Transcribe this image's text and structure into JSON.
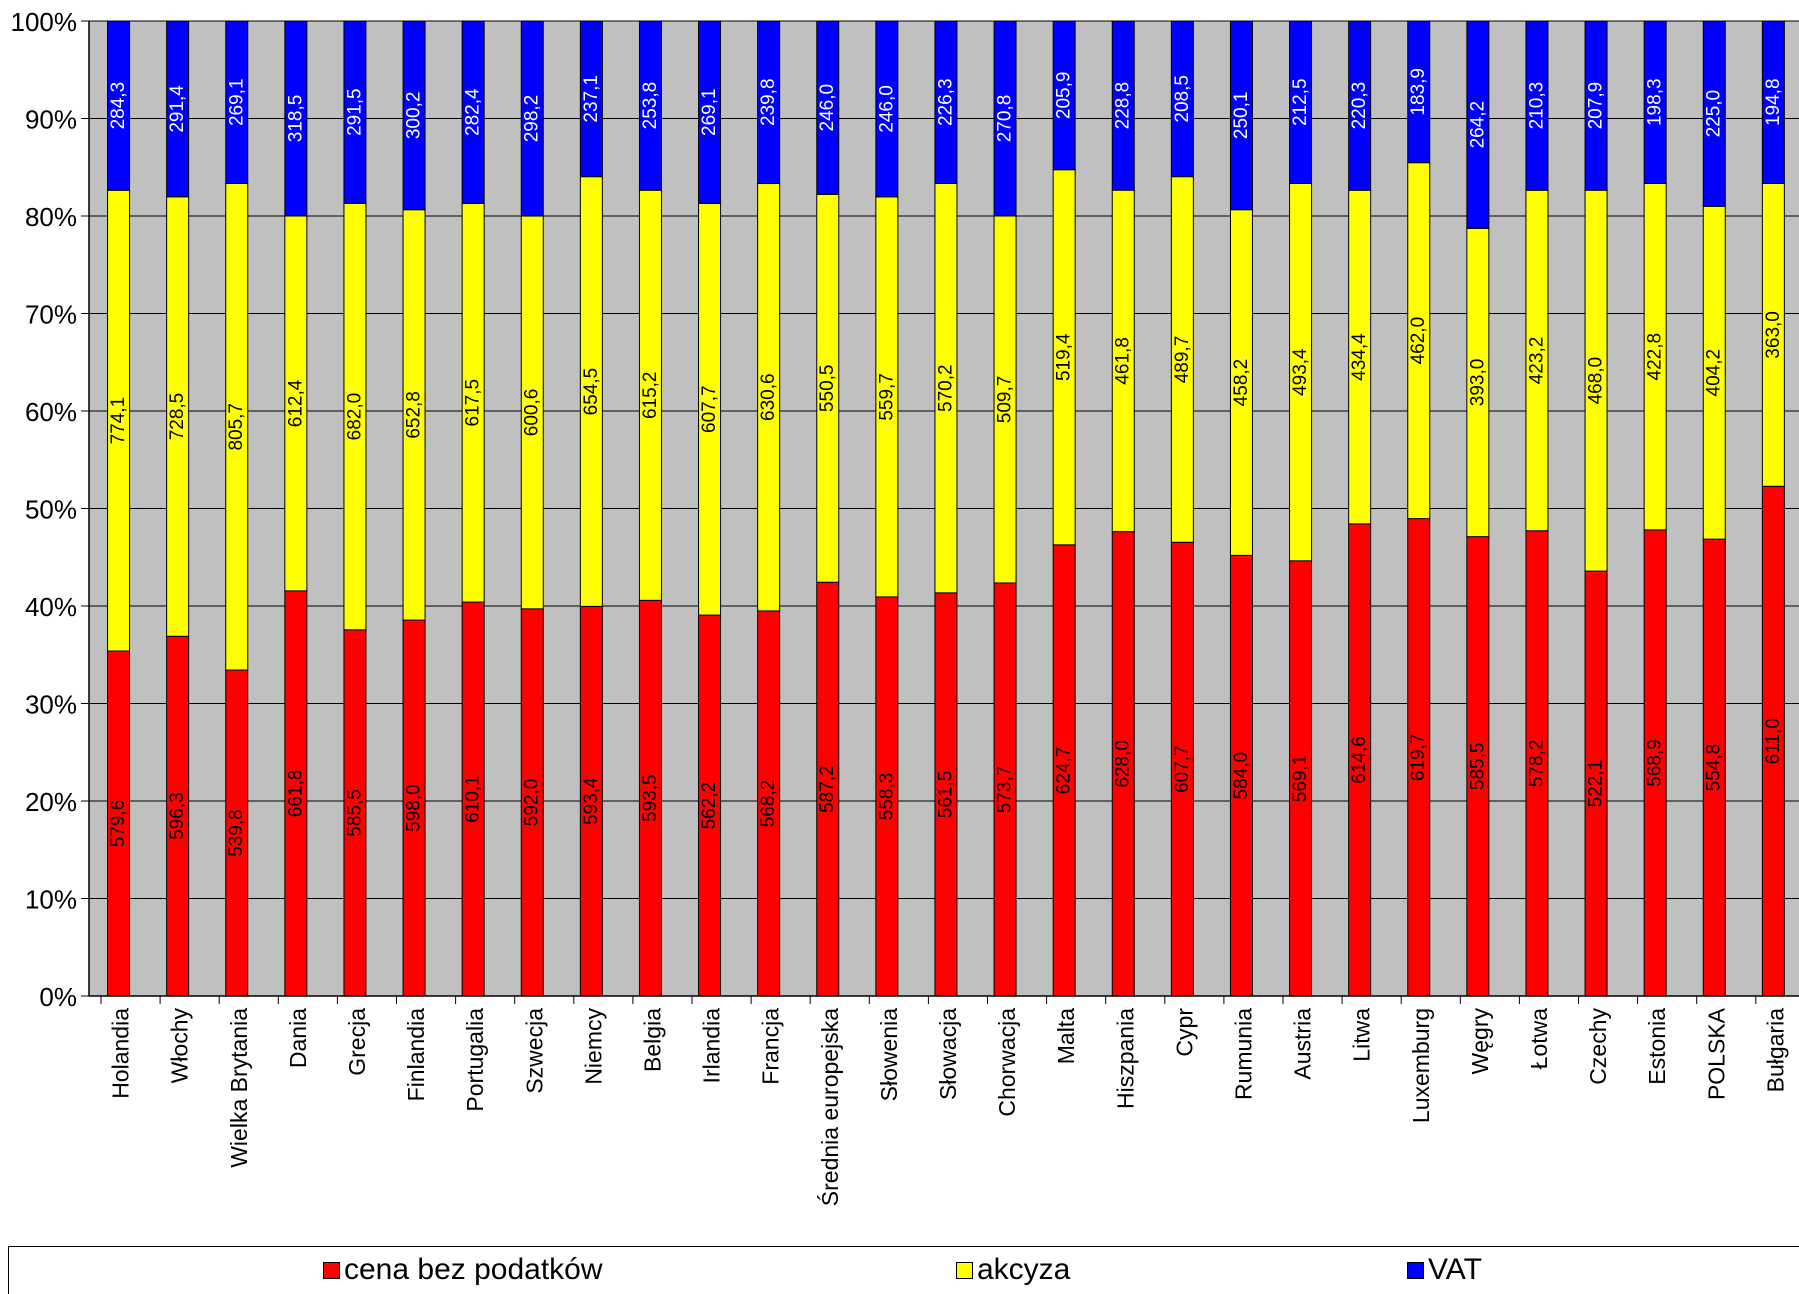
{
  "chart_data": {
    "type": "bar",
    "stacked": "percent",
    "categories": [
      "Holandia",
      "Włochy",
      "Wielka Brytania",
      "Dania",
      "Grecja",
      "Finlandia",
      "Portugalia",
      "Szwecja",
      "Niemcy",
      "Belgia",
      "Irlandia",
      "Francja",
      "Średnia europejska",
      "Słowenia",
      "Słowacja",
      "Chorwacja",
      "Malta",
      "Hiszpania",
      "Cypr",
      "Rumunia",
      "Austria",
      "Litwa",
      "Luxemburg",
      "Węgry",
      "Łotwa",
      "Czechy",
      "Estonia",
      "POLSKA",
      "Bułgaria"
    ],
    "series": [
      {
        "name": "cena bez podatków",
        "color": "#ff0000",
        "values": [
          579.6,
          596.3,
          539.8,
          661.8,
          585.5,
          598.0,
          610.1,
          592.0,
          593.4,
          593.5,
          562.2,
          568.2,
          587.2,
          558.3,
          561.5,
          573.7,
          624.7,
          628.0,
          607.7,
          584.0,
          569.1,
          614.6,
          619.7,
          585.5,
          578.2,
          522.1,
          568.9,
          554.8,
          611.0
        ],
        "labels": [
          "579,6",
          "596,3",
          "539,8",
          "661,8",
          "585,5",
          "598,0",
          "610,1",
          "592,0",
          "593,4",
          "593,5",
          "562,2",
          "568,2",
          "587,2",
          "558,3",
          "561,5",
          "573,7",
          "624,7",
          "628,0",
          "607,7",
          "584,0",
          "569,1",
          "614,6",
          "619,7",
          "585,5",
          "578,2",
          "522,1",
          "568,9",
          "554,8",
          "611,0"
        ]
      },
      {
        "name": "akcyza",
        "color": "#ffff00",
        "values": [
          774.1,
          728.5,
          805.7,
          612.4,
          682.0,
          652.8,
          617.5,
          600.6,
          654.5,
          615.2,
          607.7,
          630.6,
          550.5,
          559.7,
          570.2,
          509.7,
          519.4,
          461.8,
          489.7,
          458.2,
          493.4,
          434.4,
          462.0,
          393.0,
          423.2,
          468.0,
          422.8,
          404.2,
          363.0
        ],
        "labels": [
          "774,1",
          "728,5",
          "805,7",
          "612,4",
          "682,0",
          "652,8",
          "617,5",
          "600,6",
          "654,5",
          "615,2",
          "607,7",
          "630,6",
          "550,5",
          "559,7",
          "570,2",
          "509,7",
          "519,4",
          "461,8",
          "489,7",
          "458,2",
          "493,4",
          "434,4",
          "462,0",
          "393,0",
          "423,2",
          "468,0",
          "422,8",
          "404,2",
          "363,0"
        ]
      },
      {
        "name": "VAT",
        "color": "#0000ff",
        "values": [
          284.3,
          291.4,
          269.1,
          318.5,
          291.5,
          300.2,
          282.4,
          298.2,
          237.1,
          253.8,
          269.1,
          239.8,
          246.0,
          246.0,
          226.3,
          270.8,
          205.9,
          228.8,
          208.5,
          250.1,
          212.5,
          220.3,
          183.9,
          264.2,
          210.3,
          207.9,
          198.3,
          225.0,
          194.8
        ],
        "labels": [
          "284,3",
          "291,4",
          "269,1",
          "318,5",
          "291,5",
          "300,2",
          "282,4",
          "298,2",
          "237,1",
          "253,8",
          "269,1",
          "239,8",
          "246,0",
          "246,0",
          "226,3",
          "270,8",
          "205,9",
          "228,8",
          "208,5",
          "250,1",
          "212,5",
          "220,3",
          "183,9",
          "264,2",
          "210,3",
          "207,9",
          "198,3",
          "225,0",
          "194,8"
        ]
      }
    ],
    "y_ticks": [
      "0%",
      "10%",
      "20%",
      "30%",
      "40%",
      "50%",
      "60%",
      "70%",
      "80%",
      "90%",
      "100%"
    ],
    "ylim": [
      0,
      100
    ],
    "grid": true,
    "plot_background": "#c0c0c0",
    "legend_position": "bottom"
  }
}
